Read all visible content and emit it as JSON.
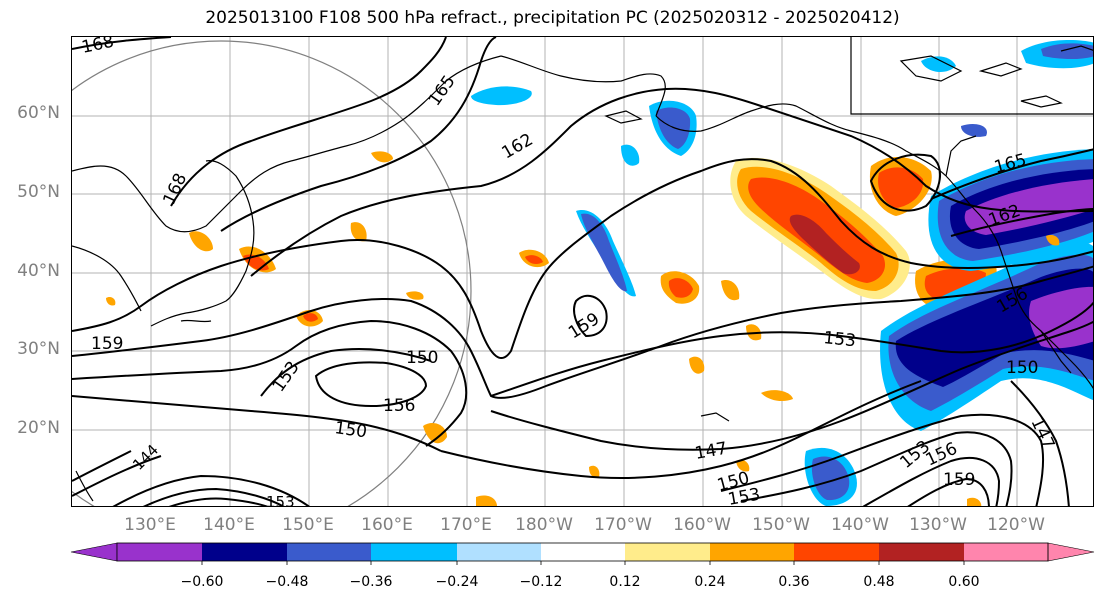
{
  "title": "2025013100 F108 500 hPa refract., precipitation PC (2025020312 - 2025020412)",
  "lat_labels": [
    "60°N",
    "50°N",
    "40°N",
    "30°N",
    "20°N"
  ],
  "lon_labels": [
    "130°E",
    "140°E",
    "150°E",
    "160°E",
    "170°E",
    "180°W",
    "170°W",
    "160°W",
    "150°W",
    "140°W",
    "130°W",
    "120°W"
  ],
  "contour_labels": [
    "168",
    "165",
    "162",
    "168",
    "159",
    "153",
    "150",
    "156",
    "150",
    "159",
    "153",
    "147",
    "150",
    "153",
    "165",
    "162",
    "156",
    "150",
    "147",
    "153",
    "156",
    "159",
    "153",
    "144"
  ],
  "colorbar": {
    "ticks": [
      "−0.60",
      "−0.48",
      "−0.36",
      "−0.24",
      "−0.12",
      "0.12",
      "0.24",
      "0.36",
      "0.48",
      "0.60"
    ],
    "colors": [
      "#9932cc",
      "#00008b",
      "#3a5bcc",
      "#00bfff",
      "#b0e0ff",
      "#ffffff",
      "#ffec8b",
      "#ffa500",
      "#ff4500",
      "#b22222",
      "#ff85ad"
    ]
  }
}
